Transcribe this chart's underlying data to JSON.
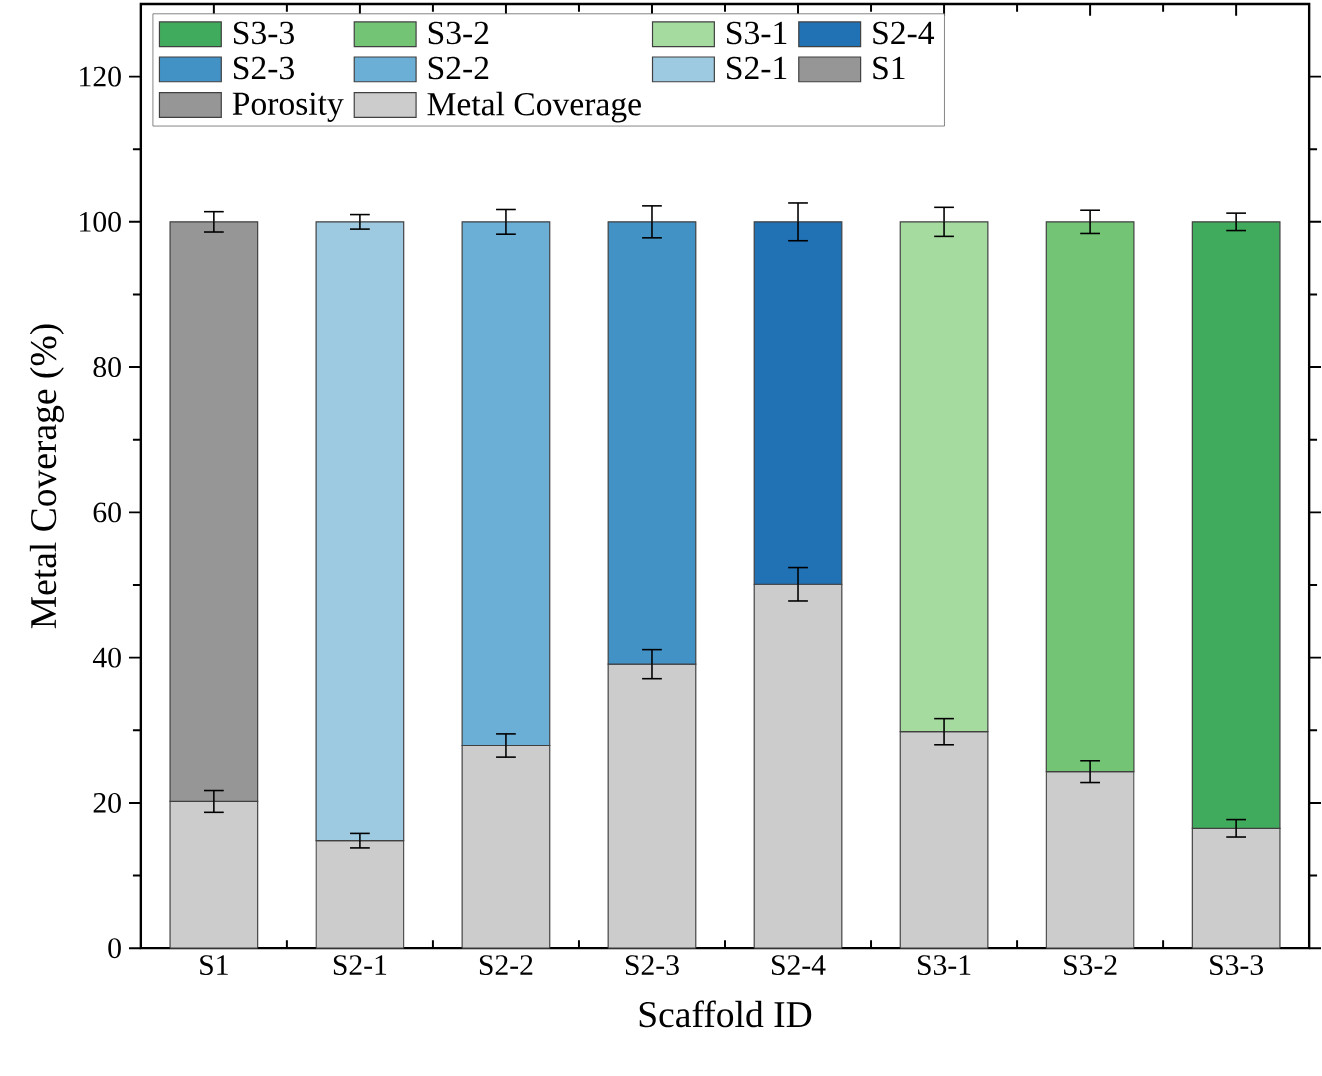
{
  "chart_data": {
    "type": "bar",
    "stacked": true,
    "xlabel": "Scaffold ID",
    "ylabel": "Metal Coverage (%)",
    "categories": [
      "S1",
      "S2-1",
      "S2-2",
      "S2-3",
      "S2-4",
      "S3-1",
      "S3-2",
      "S3-3"
    ],
    "ylim": [
      0,
      130
    ],
    "yticks": [
      0,
      20,
      40,
      60,
      80,
      100,
      120
    ],
    "grid": false,
    "legend": "top left",
    "series": [
      {
        "name": "Metal Coverage",
        "color": "#cccccc",
        "values": [
          20.2,
          14.8,
          27.9,
          39.1,
          50.1,
          29.8,
          24.3,
          16.5
        ],
        "errors": [
          1.5,
          1.0,
          1.6,
          2.0,
          2.3,
          1.8,
          1.5,
          1.2
        ]
      },
      {
        "name": "Porosity",
        "color": "#969696",
        "values": [
          null,
          null,
          null,
          null,
          null,
          null,
          null,
          null
        ]
      },
      {
        "name": "S1",
        "color": "#969696",
        "values": [
          79.8,
          null,
          null,
          null,
          null,
          null,
          null,
          null
        ],
        "errors": [
          1.4,
          null,
          null,
          null,
          null,
          null,
          null,
          null
        ]
      },
      {
        "name": "S2-1",
        "color": "#9ecae1",
        "values": [
          null,
          85.2,
          null,
          null,
          null,
          null,
          null,
          null
        ],
        "errors": [
          null,
          1.0,
          null,
          null,
          null,
          null,
          null,
          null
        ]
      },
      {
        "name": "S2-2",
        "color": "#6baed6",
        "values": [
          null,
          null,
          72.1,
          null,
          null,
          null,
          null,
          null
        ],
        "errors": [
          null,
          null,
          1.7,
          null,
          null,
          null,
          null,
          null
        ]
      },
      {
        "name": "S2-3",
        "color": "#4292c6",
        "values": [
          null,
          null,
          null,
          60.9,
          null,
          null,
          null,
          null
        ],
        "errors": [
          null,
          null,
          null,
          2.2,
          null,
          null,
          null,
          null
        ]
      },
      {
        "name": "S2-4",
        "color": "#2171b5",
        "values": [
          null,
          null,
          null,
          null,
          49.9,
          null,
          null,
          null
        ],
        "errors": [
          null,
          null,
          null,
          null,
          2.6,
          null,
          null,
          null
        ]
      },
      {
        "name": "S3-1",
        "color": "#a6dba0",
        "values": [
          null,
          null,
          null,
          null,
          null,
          70.2,
          null,
          null
        ],
        "errors": [
          null,
          null,
          null,
          null,
          null,
          2.0,
          null,
          null
        ]
      },
      {
        "name": "S3-2",
        "color": "#74c476",
        "values": [
          null,
          null,
          null,
          null,
          null,
          null,
          75.7,
          null
        ],
        "errors": [
          null,
          null,
          null,
          null,
          null,
          null,
          1.6,
          null
        ]
      },
      {
        "name": "S3-3",
        "color": "#41ab5d",
        "values": [
          null,
          null,
          null,
          null,
          null,
          null,
          null,
          83.5
        ],
        "errors": [
          null,
          null,
          null,
          null,
          null,
          null,
          null,
          1.2
        ]
      }
    ]
  }
}
